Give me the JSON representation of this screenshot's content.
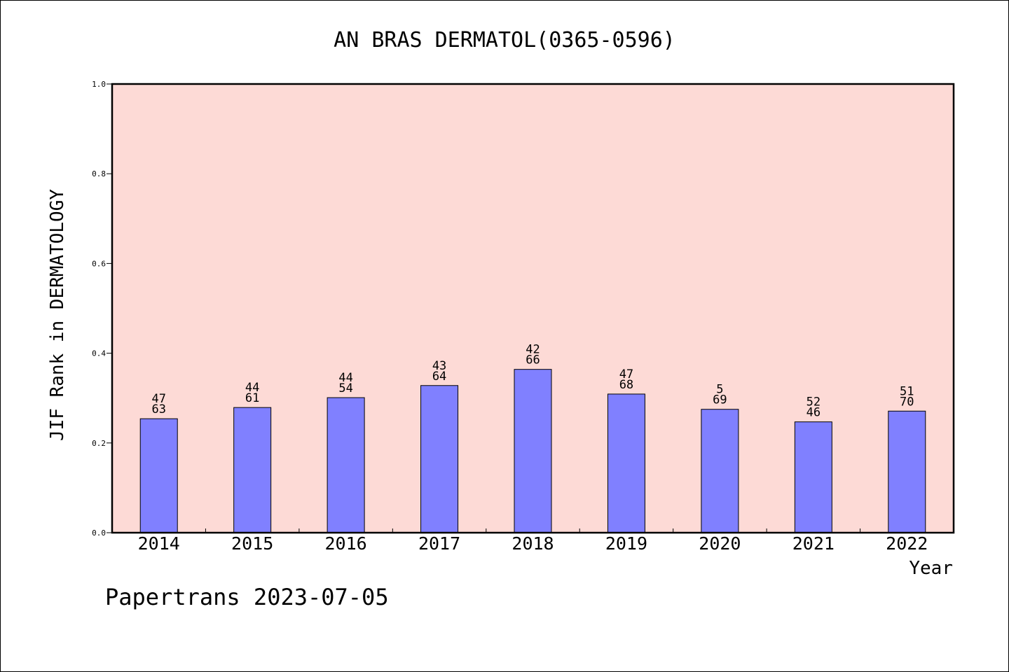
{
  "chart_data": {
    "type": "bar",
    "title": "AN BRAS DERMATOL(0365-0596)",
    "xlabel": "Year",
    "ylabel": "JIF Rank in DERMATOLOGY",
    "ylim": [
      0,
      1.0
    ],
    "yticks": [
      "0.0",
      "0.2",
      "0.4",
      "0.6",
      "0.8",
      "1.0"
    ],
    "categories": [
      "2014",
      "2015",
      "2016",
      "2017",
      "2018",
      "2019",
      "2020",
      "2021",
      "2022"
    ],
    "values": [
      0.254,
      0.279,
      0.301,
      0.328,
      0.364,
      0.309,
      0.275,
      0.247,
      0.271
    ],
    "label_top": [
      "47",
      "44",
      "44",
      "43",
      "42",
      "47",
      "5",
      "52",
      "51"
    ],
    "label_bottom": [
      "63",
      "61",
      "54",
      "64",
      "66",
      "68",
      "69",
      "46",
      "70"
    ],
    "grid": false,
    "legend": "none",
    "colors": {
      "plot_background": "#fddad6",
      "bar_fill": "#8080ff",
      "bar_stroke": "#000000",
      "axis": "#000000"
    }
  },
  "footer": {
    "credit": "Papertrans 2023-07-05"
  }
}
